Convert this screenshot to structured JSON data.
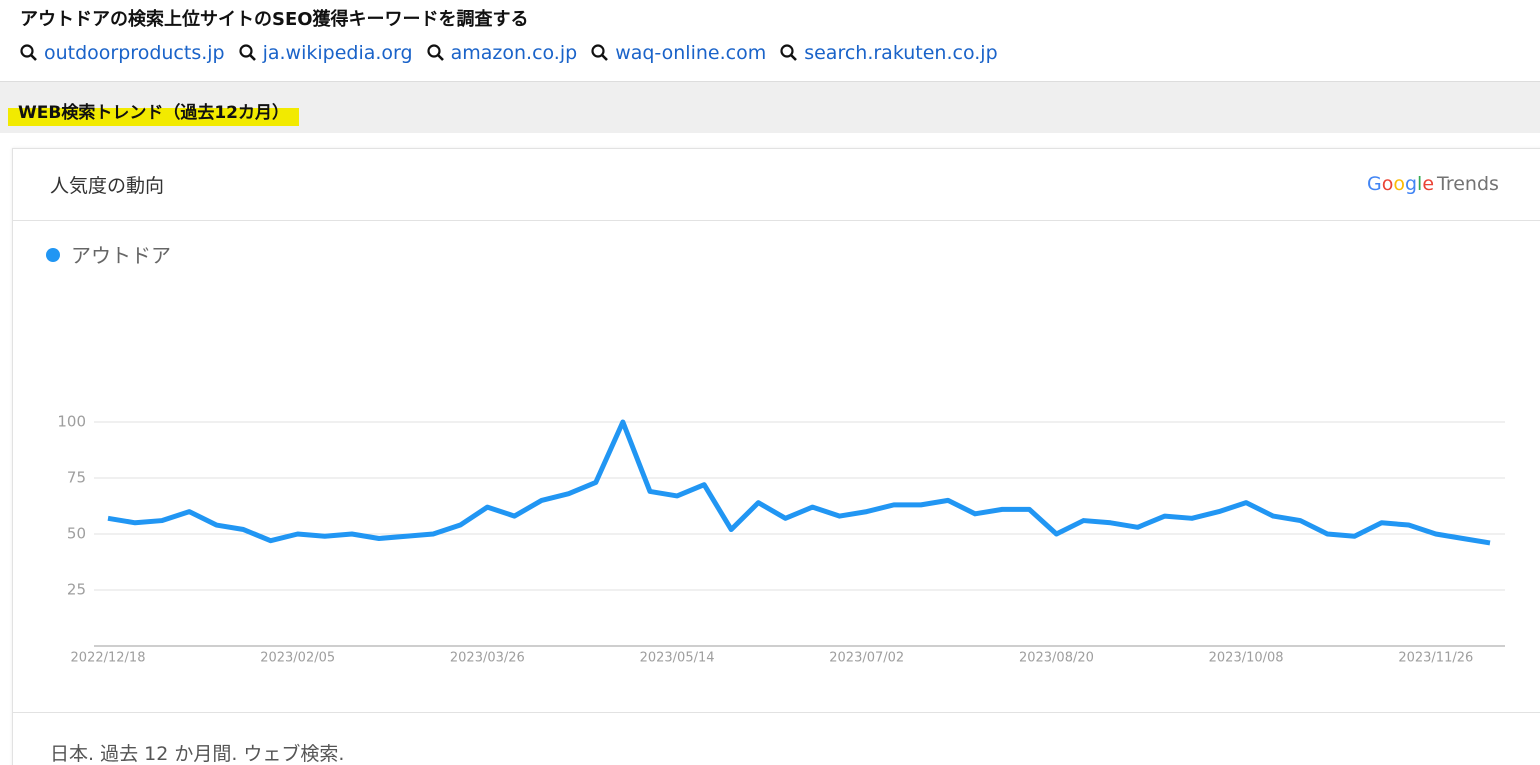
{
  "header": {
    "title": "アウトドアの検索上位サイトのSEO獲得キーワードを調査する",
    "links": [
      "outdoorproducts.jp",
      "ja.wikipedia.org",
      "amazon.co.jp",
      "waq-online.com",
      "search.rakuten.co.jp"
    ]
  },
  "section_title": "WEB検索トレンド（過去12カ月）",
  "card": {
    "title": "人気度の動向",
    "brand": "Google",
    "brand_suffix": "Trends",
    "footer": "日本. 過去 12 か月間. ウェブ検索."
  },
  "chart_data": {
    "type": "line",
    "categories": [
      "2022/12/18",
      null,
      null,
      null,
      null,
      null,
      null,
      "2023/02/05",
      null,
      null,
      null,
      null,
      null,
      null,
      "2023/03/26",
      null,
      null,
      null,
      null,
      null,
      null,
      "2023/05/14",
      null,
      null,
      null,
      null,
      null,
      null,
      "2023/07/02",
      null,
      null,
      null,
      null,
      null,
      null,
      "2023/08/20",
      null,
      null,
      null,
      null,
      null,
      null,
      "2023/10/08",
      null,
      null,
      null,
      null,
      null,
      null,
      "2023/11/26",
      null,
      null
    ],
    "series": [
      {
        "name": "アウトドア",
        "color": "#2196f3",
        "values": [
          57,
          55,
          56,
          60,
          54,
          52,
          47,
          50,
          49,
          50,
          48,
          49,
          50,
          54,
          62,
          58,
          65,
          68,
          73,
          100,
          69,
          67,
          72,
          52,
          64,
          57,
          62,
          58,
          60,
          63,
          63,
          65,
          59,
          61,
          61,
          50,
          56,
          55,
          53,
          58,
          57,
          60,
          64,
          58,
          56,
          50,
          49,
          55,
          54,
          50,
          48,
          46
        ]
      }
    ],
    "ylim": [
      0,
      100
    ],
    "yticks": [
      25,
      50,
      75,
      100
    ],
    "grid": true
  }
}
